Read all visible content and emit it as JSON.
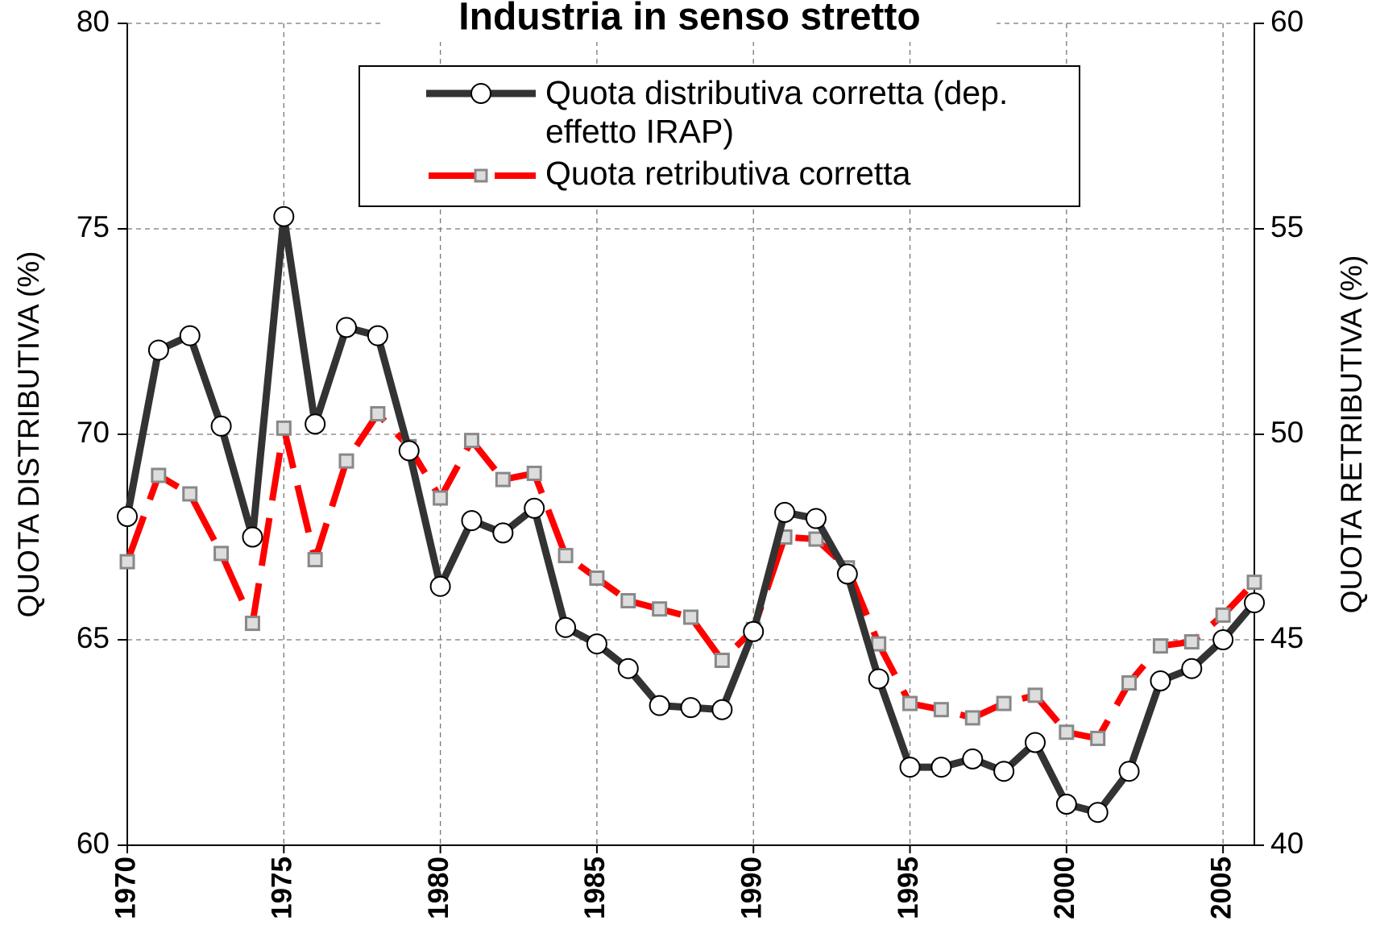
{
  "chart_data": {
    "type": "line",
    "title": "Industria in senso stretto",
    "ylabel": "QUOTA DISTRIBUTIVA (%)",
    "y2label": "QUOTA RETRIBUTIVA (%)",
    "x": [
      1970,
      1971,
      1972,
      1973,
      1974,
      1975,
      1976,
      1977,
      1978,
      1979,
      1980,
      1981,
      1982,
      1983,
      1984,
      1985,
      1986,
      1987,
      1988,
      1989,
      1990,
      1991,
      1992,
      1993,
      1994,
      1995,
      1996,
      1997,
      1998,
      1999,
      2000,
      2001,
      2002,
      2003,
      2004,
      2005,
      2006
    ],
    "xlim": [
      1970,
      2006
    ],
    "xticks": [
      1970,
      1975,
      1980,
      1985,
      1990,
      1995,
      2000,
      2005
    ],
    "ylim": [
      60,
      80
    ],
    "yticks": [
      60,
      65,
      70,
      75,
      80
    ],
    "y2lim": [
      40,
      60
    ],
    "y2ticks": [
      40,
      45,
      50,
      55,
      60
    ],
    "grid": true,
    "legend": "top",
    "series": [
      {
        "name": "Quota distributiva corretta (dep. effetto IRAP)",
        "color": "#333333",
        "axis": "y",
        "values": [
          68.0,
          72.05,
          72.4,
          70.2,
          67.5,
          75.3,
          70.25,
          72.6,
          72.4,
          69.6,
          66.3,
          67.9,
          67.6,
          68.2,
          65.3,
          64.9,
          64.3,
          63.4,
          63.35,
          63.3,
          65.2,
          68.1,
          67.95,
          66.6,
          64.05,
          61.9,
          61.9,
          62.1,
          61.8,
          62.5,
          61.0,
          60.8,
          61.8,
          64.0,
          64.3,
          65.0,
          65.9
        ]
      },
      {
        "name": "Quota retributiva corretta",
        "color": "#ff0000",
        "axis": "y2",
        "values": [
          46.9,
          49.0,
          48.55,
          47.1,
          45.4,
          50.15,
          46.95,
          49.35,
          50.5,
          49.7,
          48.45,
          49.85,
          48.9,
          49.05,
          47.05,
          46.5,
          45.95,
          45.75,
          45.55,
          44.5,
          45.25,
          47.5,
          47.45,
          46.75,
          44.9,
          43.45,
          43.3,
          43.1,
          43.45,
          43.65,
          42.75,
          42.6,
          43.95,
          44.85,
          44.95,
          45.6,
          46.4
        ]
      }
    ]
  }
}
